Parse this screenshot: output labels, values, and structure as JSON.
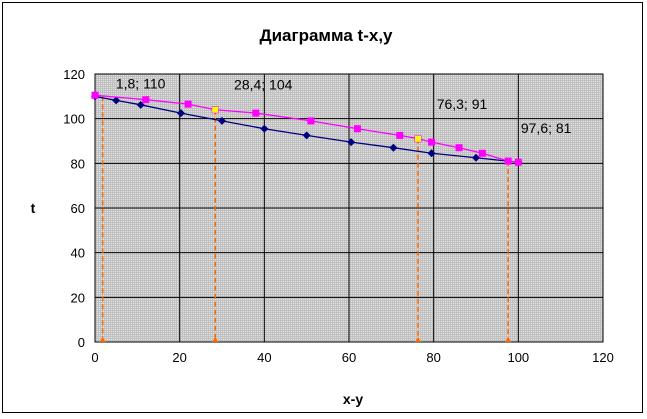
{
  "chart_data": {
    "type": "line",
    "title": "Диаграмма t-x,y",
    "xlabel": "x-y",
    "ylabel": "t",
    "xlim": [
      0,
      120
    ],
    "ylim": [
      0,
      120
    ],
    "xticks": [
      0,
      20,
      40,
      60,
      80,
      100,
      120
    ],
    "yticks": [
      0,
      20,
      40,
      60,
      80,
      100,
      120
    ],
    "grid": true,
    "legend": "none",
    "colors": {
      "plot_bg": "#c0c0c0",
      "series_lower": "#000080",
      "series_upper": "#ff00ff",
      "drop_lines": "#ff6600",
      "highlight": "#ffff00"
    },
    "series": [
      {
        "color": "#000080",
        "marker": "diamond",
        "x": [
          0,
          5,
          10.8,
          20.3,
          30,
          40,
          50,
          60.5,
          70.5,
          79.5,
          90,
          100
        ],
        "y": [
          110,
          108.2,
          106.2,
          102.5,
          99,
          95.5,
          92.5,
          89.5,
          87,
          84.5,
          82.5,
          80.5
        ]
      },
      {
        "color": "#ff00ff",
        "marker": "square",
        "x": [
          0,
          12,
          22,
          28.4,
          38,
          51,
          62,
          72,
          76.3,
          79.5,
          86,
          91.5,
          97.6,
          100
        ],
        "y": [
          110.5,
          108.5,
          106.5,
          104,
          102.5,
          99,
          95.5,
          92.5,
          91,
          89.5,
          87,
          84.5,
          81,
          80.5
        ]
      }
    ],
    "drop_lines": [
      {
        "x": 1.8,
        "y": 110
      },
      {
        "x": 28.4,
        "y": 104
      },
      {
        "x": 76.3,
        "y": 91
      },
      {
        "x": 97.6,
        "y": 81
      }
    ],
    "annotations": [
      {
        "text": "1,8; 110",
        "x": 1.8,
        "y": 110
      },
      {
        "text": "28,4; 104",
        "x": 28.4,
        "y": 104
      },
      {
        "text": "76,3; 91",
        "x": 76.3,
        "y": 91
      },
      {
        "text": "97,6; 81",
        "x": 97.6,
        "y": 81
      }
    ]
  }
}
